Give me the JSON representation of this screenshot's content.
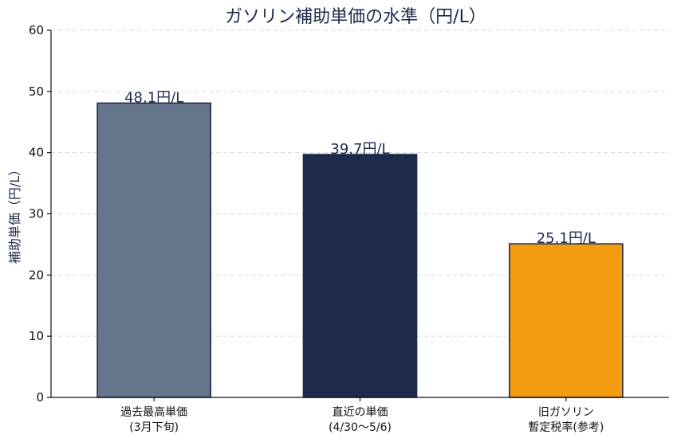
{
  "chart_data": {
    "type": "bar",
    "title": "ガソリン補助単価の水準（円/L）",
    "xlabel": "",
    "ylabel": "補助単価（円/L）",
    "ylim": [
      0,
      60
    ],
    "yticks": [
      0,
      10,
      20,
      30,
      40,
      50,
      60
    ],
    "grid": "horizontal-dashed",
    "legend": "none",
    "categories": [
      [
        "過去最高単価",
        "(3月下旬)"
      ],
      [
        "直近の単価",
        "(4/30〜5/6)"
      ],
      [
        "旧ガソリン",
        "暫定税率(参考)"
      ]
    ],
    "values": [
      48.1,
      39.7,
      25.1
    ],
    "value_labels": [
      "48.1円/L",
      "39.7円/L",
      "25.1円/L"
    ],
    "colors": [
      "#64758c",
      "#1e2a4a",
      "#f39c12"
    ]
  }
}
